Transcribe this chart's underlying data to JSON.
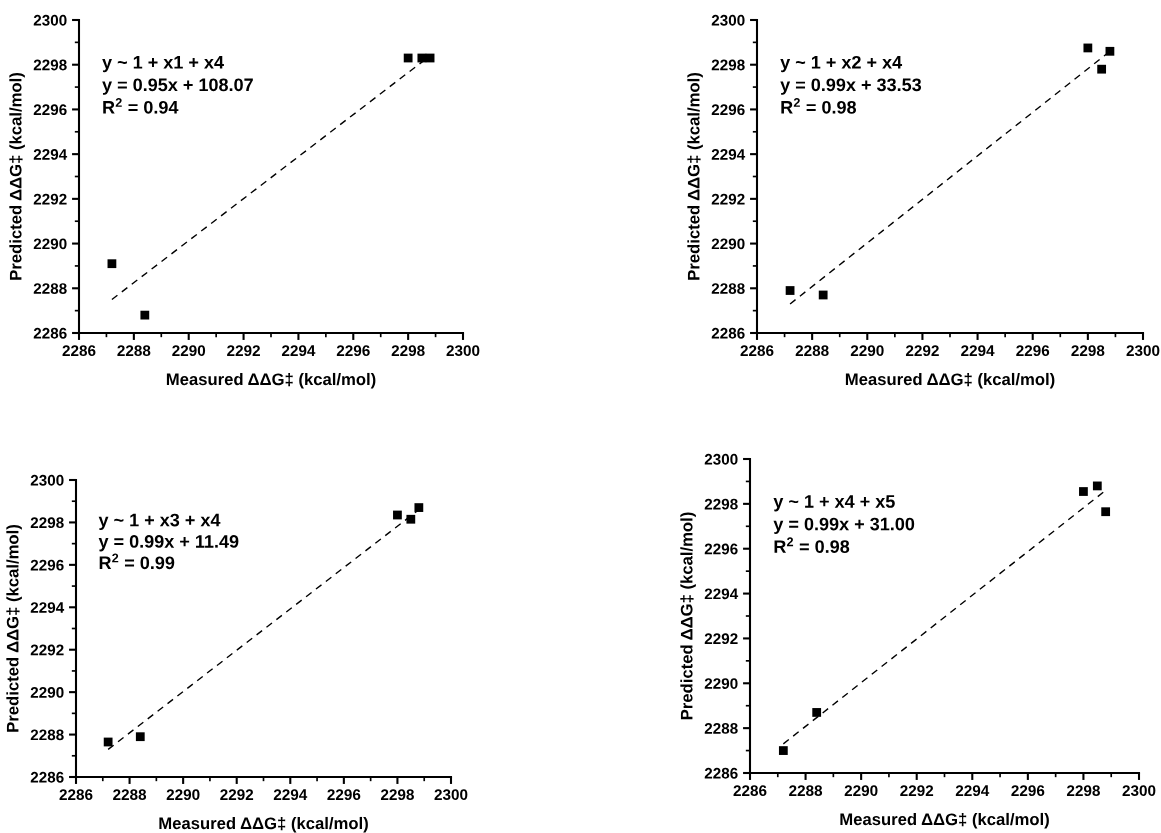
{
  "chart_data": [
    {
      "type": "scatter",
      "xlabel": "Measured ΔΔG‡ (kcal/mol)",
      "ylabel": "Predicted ΔΔG‡ (kcal/mol)",
      "xlim": [
        2286,
        2300
      ],
      "ylim": [
        2286,
        2300
      ],
      "xticks": [
        2286,
        2288,
        2290,
        2292,
        2294,
        2296,
        2298,
        2300
      ],
      "yticks": [
        2286,
        2288,
        2290,
        2292,
        2294,
        2296,
        2298,
        2300
      ],
      "grid": false,
      "legend": false,
      "marker": "square",
      "annotations": [
        "y ~ 1 + x1 + x4",
        "y = 0.95x + 108.07",
        "R$^{2}$ = 0.94"
      ],
      "series": [
        {
          "color": "#000000",
          "x": [
            2287.2,
            2288.4,
            2298.0,
            2298.5,
            2298.8
          ],
          "values": [
            2289.1,
            2286.8,
            2298.3,
            2298.3,
            2298.3
          ]
        },
        {
          "type": "line",
          "color": "#000000",
          "line_style": "dashed",
          "marker": "none",
          "x": [
            2287.2,
            2298.8
          ],
          "values": [
            2287.5,
            2298.4
          ]
        }
      ]
    },
    {
      "type": "scatter",
      "xlabel": "Measured ΔΔG‡ (kcal/mol)",
      "ylabel": "Predicted ΔΔG‡ (kcal/mol)",
      "xlim": [
        2286,
        2300
      ],
      "ylim": [
        2286,
        2300
      ],
      "xticks": [
        2286,
        2288,
        2290,
        2292,
        2294,
        2296,
        2298,
        2300
      ],
      "yticks": [
        2286,
        2288,
        2290,
        2292,
        2294,
        2296,
        2298,
        2300
      ],
      "grid": false,
      "legend": false,
      "marker": "square",
      "annotations": [
        "y ~ 1 + x2 + x4",
        "y = 0.99x + 33.53",
        "R$^{2}$ = 0.98"
      ],
      "series": [
        {
          "color": "#000000",
          "x": [
            2287.2,
            2288.4,
            2298.0,
            2298.5,
            2298.8
          ],
          "values": [
            2287.9,
            2287.7,
            2298.75,
            2297.8,
            2298.6
          ]
        },
        {
          "type": "line",
          "color": "#000000",
          "line_style": "dashed",
          "marker": "none",
          "x": [
            2287.2,
            2298.8
          ],
          "values": [
            2287.3,
            2298.6
          ]
        }
      ]
    },
    {
      "type": "scatter",
      "xlabel": "Measured ΔΔG‡ (kcal/mol)",
      "ylabel": "Predicted ΔΔG‡ (kcal/mol)",
      "xlim": [
        2286,
        2300
      ],
      "ylim": [
        2286,
        2300
      ],
      "xticks": [
        2286,
        2288,
        2290,
        2292,
        2294,
        2296,
        2298,
        2300
      ],
      "yticks": [
        2286,
        2288,
        2290,
        2292,
        2294,
        2296,
        2298,
        2300
      ],
      "grid": false,
      "legend": false,
      "marker": "square",
      "annotations": [
        "y ~ 1 + x3 + x4",
        "y = 0.99x + 11.49",
        "R$^{2}$ = 0.99"
      ],
      "series": [
        {
          "color": "#000000",
          "x": [
            2287.2,
            2288.4,
            2298.0,
            2298.5,
            2298.8
          ],
          "values": [
            2287.65,
            2287.9,
            2298.35,
            2298.15,
            2298.7
          ]
        },
        {
          "type": "line",
          "color": "#000000",
          "line_style": "dashed",
          "marker": "none",
          "x": [
            2287.2,
            2298.8
          ],
          "values": [
            2287.3,
            2298.6
          ]
        }
      ]
    },
    {
      "type": "scatter",
      "xlabel": "Measured ΔΔG‡ (kcal/mol)",
      "ylabel": "Predicted ΔΔG‡ (kcal/mol)",
      "xlim": [
        2286,
        2300
      ],
      "ylim": [
        2286,
        2300
      ],
      "xticks": [
        2286,
        2288,
        2290,
        2292,
        2294,
        2296,
        2298,
        2300
      ],
      "yticks": [
        2286,
        2288,
        2290,
        2292,
        2294,
        2296,
        2298,
        2300
      ],
      "grid": false,
      "legend": false,
      "marker": "square",
      "annotations": [
        "y ~ 1 + x4 + x5",
        "y = 0.99x + 31.00",
        "R$^{2}$ = 0.98"
      ],
      "series": [
        {
          "color": "#000000",
          "x": [
            2287.2,
            2288.4,
            2298.0,
            2298.5,
            2298.8
          ],
          "values": [
            2287.0,
            2288.7,
            2298.55,
            2298.8,
            2297.65
          ]
        },
        {
          "type": "line",
          "color": "#000000",
          "line_style": "dashed",
          "marker": "none",
          "x": [
            2287.2,
            2298.8
          ],
          "values": [
            2287.3,
            2298.6
          ]
        }
      ]
    }
  ]
}
